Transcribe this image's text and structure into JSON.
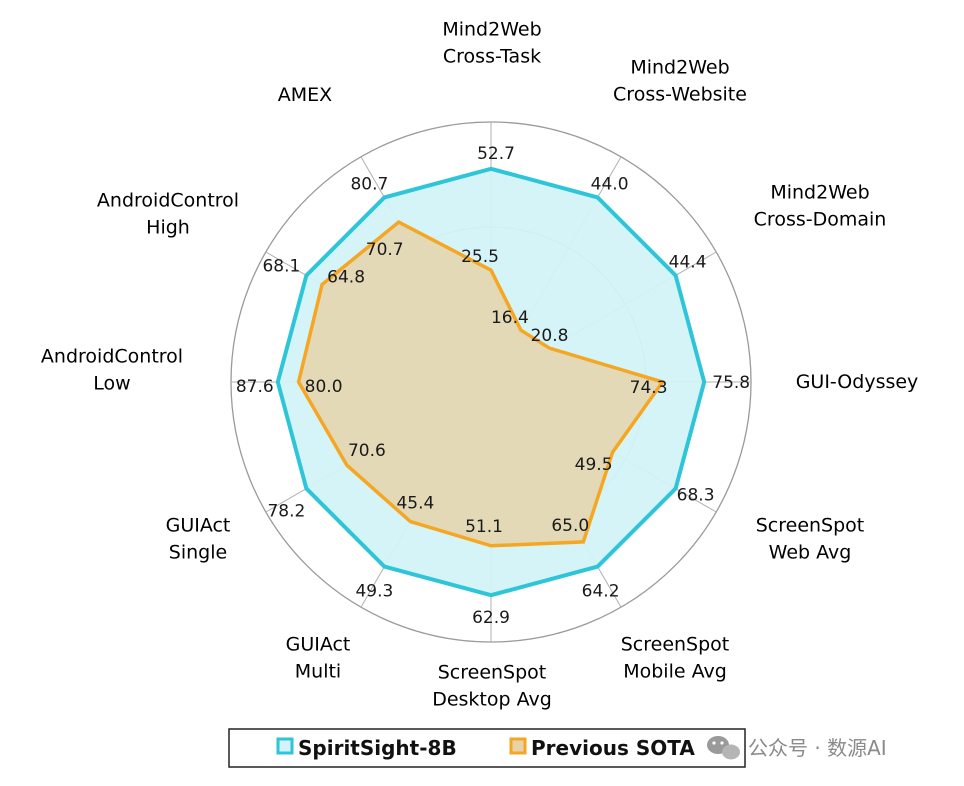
{
  "chart_data": {
    "type": "radar",
    "axes": [
      {
        "lines": [
          "Mind2Web",
          "Cross-Task"
        ]
      },
      {
        "lines": [
          "Mind2Web",
          "Cross-Website"
        ]
      },
      {
        "lines": [
          "Mind2Web",
          "Cross-Domain"
        ]
      },
      {
        "lines": [
          "GUI-Odyssey"
        ]
      },
      {
        "lines": [
          "ScreenSpot",
          "Web Avg"
        ]
      },
      {
        "lines": [
          "ScreenSpot",
          "Mobile Avg"
        ]
      },
      {
        "lines": [
          "ScreenSpot",
          "Desktop Avg"
        ]
      },
      {
        "lines": [
          "GUIAct",
          "Multi"
        ]
      },
      {
        "lines": [
          "GUIAct",
          "Single"
        ]
      },
      {
        "lines": [
          "AndroidControl",
          "Low"
        ]
      },
      {
        "lines": [
          "AndroidControl",
          "High"
        ]
      },
      {
        "lines": [
          "AMEX"
        ]
      }
    ],
    "series": [
      {
        "name": "SpiritSight-8B",
        "color": "#2ec5d8",
        "fill": "#d3f3f8",
        "values": [
          52.7,
          44.0,
          44.4,
          75.8,
          68.3,
          64.2,
          62.9,
          49.3,
          78.2,
          87.6,
          68.1,
          80.7
        ],
        "labels": [
          "52.7",
          "44.0",
          "44.4",
          "75.8",
          "68.3",
          "64.2",
          "62.9",
          "49.3",
          "78.2",
          "87.6",
          "68.1",
          "80.7"
        ],
        "relative": [
          0.82,
          0.82,
          0.82,
          0.82,
          0.82,
          0.82,
          0.82,
          0.82,
          0.82,
          0.82,
          0.82,
          0.82
        ]
      },
      {
        "name": "Previous SOTA",
        "color": "#f5a623",
        "fill": "#e6d3aa",
        "values": [
          25.5,
          16.4,
          20.8,
          74.3,
          49.5,
          65.0,
          51.1,
          45.4,
          70.6,
          80.0,
          64.8,
          70.7
        ],
        "labels": [
          "25.5",
          "16.4",
          "20.8",
          "74.3",
          "49.5",
          "65.0",
          "51.1",
          "45.4",
          "70.6",
          "80.0",
          "64.8",
          "70.7"
        ],
        "relative": [
          0.43,
          0.23,
          0.26,
          0.66,
          0.54,
          0.71,
          0.63,
          0.62,
          0.64,
          0.74,
          0.75,
          0.71
        ]
      }
    ],
    "grid": true,
    "legend_position": "bottom"
  },
  "watermark": {
    "icon": "wechat-icon",
    "text": "公众号 · 数源AI"
  }
}
